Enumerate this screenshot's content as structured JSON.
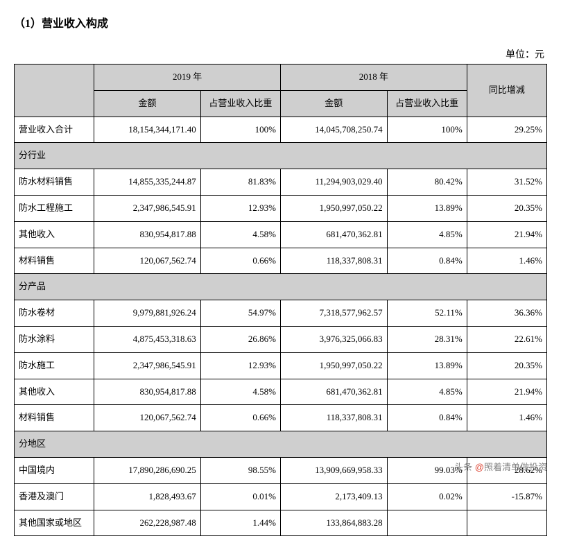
{
  "title": "（1）营业收入构成",
  "unit": "单位：元",
  "headers": {
    "year2019": "2019 年",
    "year2018": "2018 年",
    "amount": "金额",
    "ratio": "占营业收入比重",
    "change": "同比增减"
  },
  "total": {
    "label": "营业收入合计",
    "a2019": "18,154,344,171.40",
    "p2019": "100%",
    "a2018": "14,045,708,250.74",
    "p2018": "100%",
    "chg": "29.25%"
  },
  "sections": {
    "industry": "分行业",
    "product": "分产品",
    "region": "分地区"
  },
  "industry": [
    {
      "label": "防水材料销售",
      "a2019": "14,855,335,244.87",
      "p2019": "81.83%",
      "a2018": "11,294,903,029.40",
      "p2018": "80.42%",
      "chg": "31.52%"
    },
    {
      "label": "防水工程施工",
      "a2019": "2,347,986,545.91",
      "p2019": "12.93%",
      "a2018": "1,950,997,050.22",
      "p2018": "13.89%",
      "chg": "20.35%"
    },
    {
      "label": "其他收入",
      "a2019": "830,954,817.88",
      "p2019": "4.58%",
      "a2018": "681,470,362.81",
      "p2018": "4.85%",
      "chg": "21.94%"
    },
    {
      "label": "材料销售",
      "a2019": "120,067,562.74",
      "p2019": "0.66%",
      "a2018": "118,337,808.31",
      "p2018": "0.84%",
      "chg": "1.46%"
    }
  ],
  "product": [
    {
      "label": "防水卷材",
      "a2019": "9,979,881,926.24",
      "p2019": "54.97%",
      "a2018": "7,318,577,962.57",
      "p2018": "52.11%",
      "chg": "36.36%"
    },
    {
      "label": "防水涂料",
      "a2019": "4,875,453,318.63",
      "p2019": "26.86%",
      "a2018": "3,976,325,066.83",
      "p2018": "28.31%",
      "chg": "22.61%"
    },
    {
      "label": "防水施工",
      "a2019": "2,347,986,545.91",
      "p2019": "12.93%",
      "a2018": "1,950,997,050.22",
      "p2018": "13.89%",
      "chg": "20.35%"
    },
    {
      "label": "其他收入",
      "a2019": "830,954,817.88",
      "p2019": "4.58%",
      "a2018": "681,470,362.81",
      "p2018": "4.85%",
      "chg": "21.94%"
    },
    {
      "label": "材料销售",
      "a2019": "120,067,562.74",
      "p2019": "0.66%",
      "a2018": "118,337,808.31",
      "p2018": "0.84%",
      "chg": "1.46%"
    }
  ],
  "region": [
    {
      "label": "中国境内",
      "a2019": "17,890,286,690.25",
      "p2019": "98.55%",
      "a2018": "13,909,669,958.33",
      "p2018": "99.03%",
      "chg": "28.62%"
    },
    {
      "label": "香港及澳门",
      "a2019": "1,828,493.67",
      "p2019": "0.01%",
      "a2018": "2,173,409.13",
      "p2018": "0.02%",
      "chg": "-15.87%"
    },
    {
      "label": "其他国家或地区",
      "a2019": "262,228,987.48",
      "p2019": "1.44%",
      "a2018": "133,864,883.28",
      "p2018": "",
      "chg": ""
    }
  ],
  "watermark": "头条 @照着清单做投资"
}
